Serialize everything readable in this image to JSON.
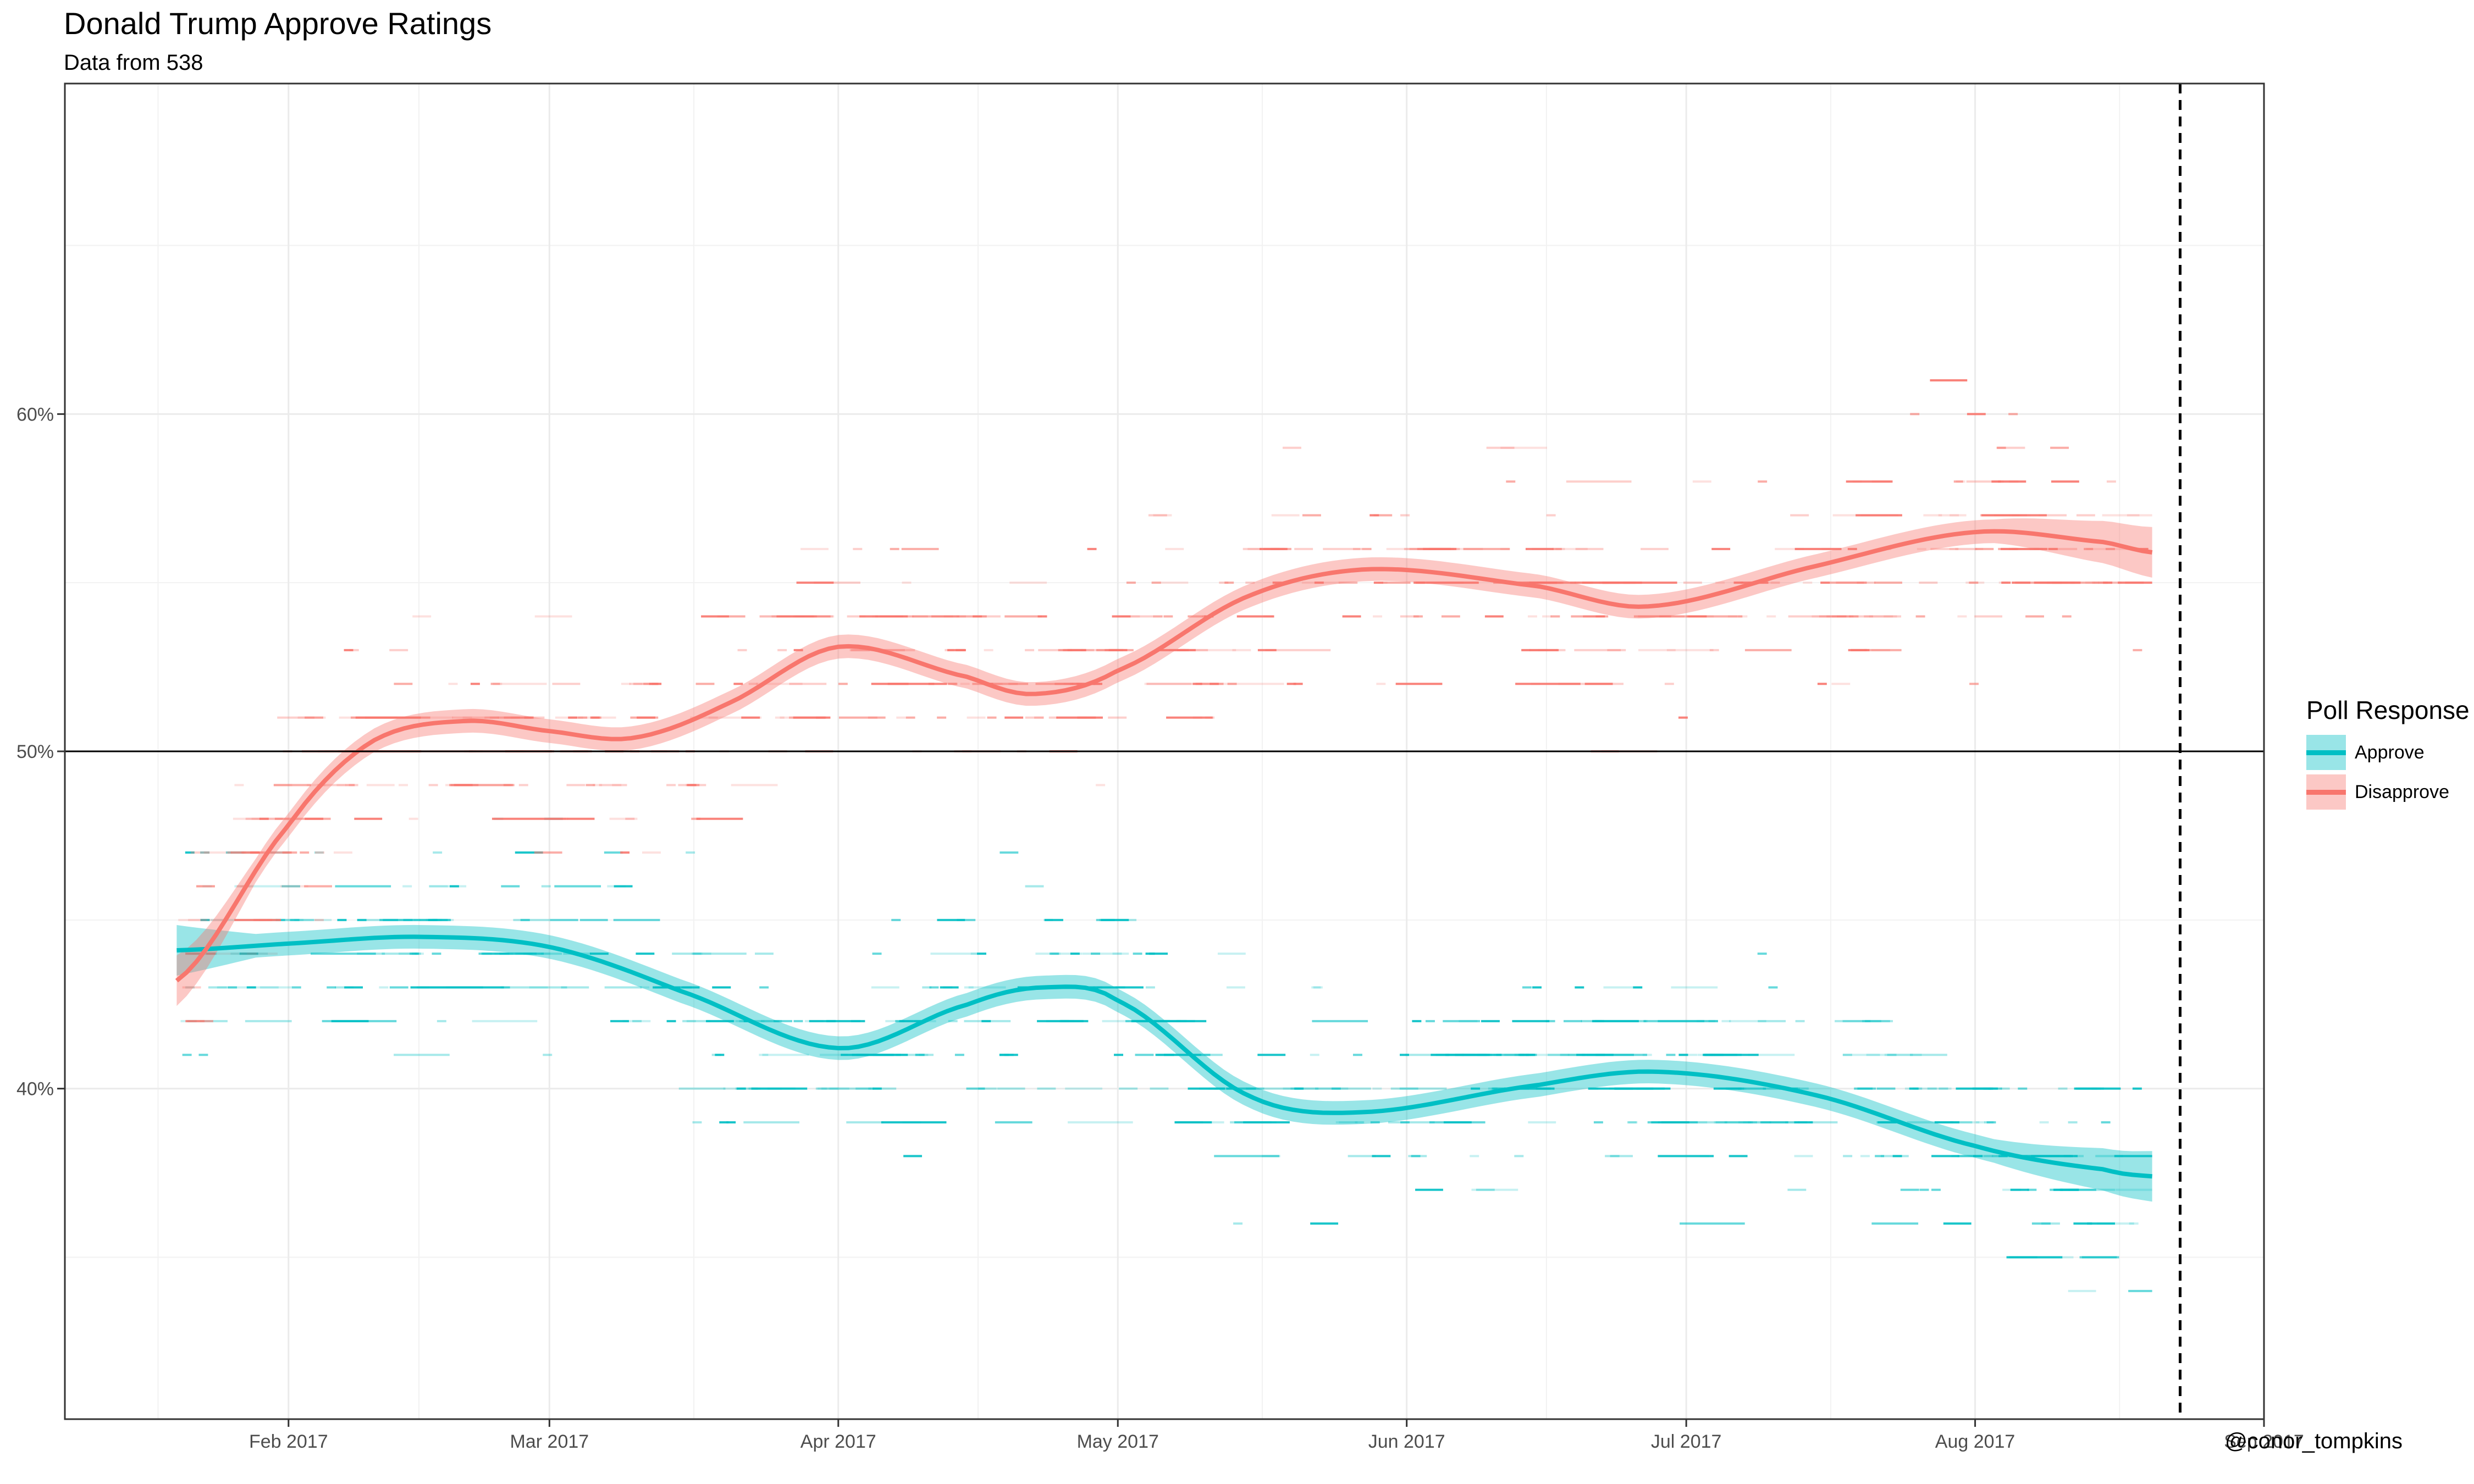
{
  "chart_data": {
    "type": "line",
    "title": "Donald Trump Approve Ratings",
    "subtitle": "Data from 538",
    "caption": "@conor_tompkins",
    "xlabel": "",
    "ylabel": "",
    "x_ticks": [
      "2017-02-01",
      "2017-03-01",
      "2017-04-01",
      "2017-05-01",
      "2017-06-01",
      "2017-07-01",
      "2017-08-01",
      "2017-09-01"
    ],
    "x_tick_labels": [
      "Feb 2017",
      "Mar 2017",
      "Apr 2017",
      "May 2017",
      "Jun 2017",
      "Jul 2017",
      "Aug 2017",
      "Sep 2017"
    ],
    "y_ticks": [
      40,
      50,
      60
    ],
    "y_tick_labels": [
      "40%",
      "50%",
      "60%"
    ],
    "xlim": [
      "2017-01-08",
      "2017-09-01"
    ],
    "ylim": [
      30.2,
      69.8
    ],
    "grid": true,
    "legend": {
      "title": "Poll Response",
      "position": "right"
    },
    "reference_lines": {
      "hline_y": 50,
      "vline_x": "2017-08-23"
    },
    "series": [
      {
        "name": "Approve",
        "color": "#00BFC4",
        "smooth_x": [
          "2017-01-20",
          "2017-02-01",
          "2017-02-15",
          "2017-03-01",
          "2017-03-15",
          "2017-04-01",
          "2017-04-15",
          "2017-04-23",
          "2017-05-01",
          "2017-05-15",
          "2017-05-27",
          "2017-06-15",
          "2017-06-28",
          "2017-07-15",
          "2017-08-01",
          "2017-08-15",
          "2017-08-20"
        ],
        "smooth_y": [
          44.1,
          44.3,
          44.5,
          44.2,
          42.9,
          41.2,
          42.5,
          43.0,
          42.6,
          39.8,
          39.3,
          40.1,
          40.5,
          39.8,
          38.3,
          37.6,
          37.4
        ],
        "band_halfwidth": 0.35,
        "band_halfwidth_end": 0.75
      },
      {
        "name": "Disapprove",
        "color": "#F8766D",
        "smooth_x": [
          "2017-01-20",
          "2017-02-01",
          "2017-02-10",
          "2017-02-20",
          "2017-03-01",
          "2017-03-10",
          "2017-03-20",
          "2017-04-01",
          "2017-04-15",
          "2017-04-22",
          "2017-05-01",
          "2017-05-15",
          "2017-05-28",
          "2017-06-15",
          "2017-06-27",
          "2017-07-15",
          "2017-08-01",
          "2017-08-15",
          "2017-08-20"
        ],
        "smooth_y": [
          43.2,
          47.8,
          50.3,
          50.9,
          50.6,
          50.4,
          51.4,
          53.1,
          52.2,
          51.7,
          52.4,
          54.6,
          55.4,
          54.9,
          54.3,
          55.5,
          56.5,
          56.2,
          55.9
        ],
        "band_halfwidth": 0.35,
        "band_halfwidth_end": 0.75
      }
    ],
    "points_note_visible": "horizontal poll-duration segments for each series"
  }
}
